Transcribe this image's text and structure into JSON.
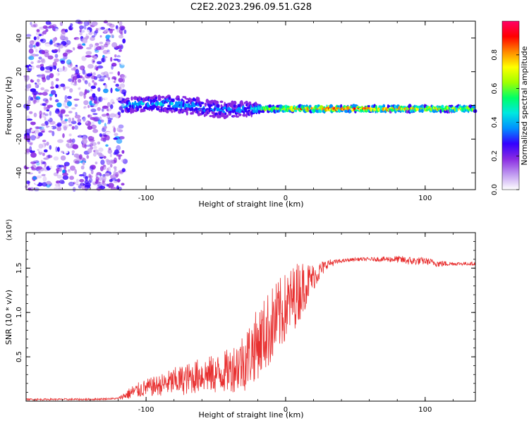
{
  "title": "C2E2.2023.296.09.51.G28",
  "chart_data": [
    {
      "type": "heatmap",
      "xlabel": "Height of straight line (km)",
      "ylabel": "Frequency (Hz)",
      "xlim": [
        -186,
        136
      ],
      "ylim": [
        -50,
        50
      ],
      "x_ticks": [
        -100,
        0,
        100
      ],
      "y_ticks": [
        -40,
        -20,
        0,
        20,
        40
      ],
      "colorbar": {
        "label": "Normalized spectral amplitude",
        "range": [
          0,
          1
        ],
        "ticks": [
          "0.0",
          "0.2",
          "0.4",
          "0.6",
          "0.8"
        ],
        "colors": [
          "#ffffff",
          "#c09af0",
          "#8a2be2",
          "#3300ff",
          "#0090ff",
          "#00e8e0",
          "#00ff66",
          "#a0ff00",
          "#ffff00",
          "#ff8800",
          "#ff0000",
          "#ff0066"
        ]
      },
      "noise_region": {
        "x_from": -186,
        "x_to": -115,
        "amplitude": 0.15
      },
      "signal": [
        {
          "x": -115,
          "freq": 0,
          "spread": 5,
          "amplitude": 0.4
        },
        {
          "x": -100,
          "freq": 1,
          "spread": 5,
          "amplitude": 0.4
        },
        {
          "x": -80,
          "freq": 1,
          "spread": 6,
          "amplitude": 0.4
        },
        {
          "x": -60,
          "freq": -1,
          "spread": 6,
          "amplitude": 0.35
        },
        {
          "x": -40,
          "freq": -3,
          "spread": 6,
          "amplitude": 0.35
        },
        {
          "x": -25,
          "freq": -2,
          "spread": 5,
          "amplitude": 0.35
        },
        {
          "x": -15,
          "freq": -2,
          "spread": 2,
          "amplitude": 0.65
        },
        {
          "x": 0,
          "freq": -2,
          "spread": 2,
          "amplitude": 0.75
        },
        {
          "x": 20,
          "freq": -2,
          "spread": 2,
          "amplitude": 0.9
        },
        {
          "x": 60,
          "freq": -2,
          "spread": 2,
          "amplitude": 0.9
        },
        {
          "x": 80,
          "freq": -2,
          "spread": 2,
          "amplitude": 0.8
        },
        {
          "x": 100,
          "freq": -2,
          "spread": 2,
          "amplitude": 0.75
        },
        {
          "x": 120,
          "freq": -2,
          "spread": 2,
          "amplitude": 0.75
        },
        {
          "x": 136,
          "freq": -2,
          "spread": 2,
          "amplitude": 0.7
        }
      ]
    },
    {
      "type": "line",
      "xlabel": "Height of straight line (km)",
      "ylabel": "SNR (10 * v/v)",
      "y_multiplier": "(x10⁴)",
      "xlim": [
        -186,
        136
      ],
      "ylim": [
        0,
        1.9
      ],
      "x_ticks": [
        -100,
        0,
        100
      ],
      "y_ticks": [
        "0.5",
        "1.0",
        "1.5"
      ],
      "line_color": "#e83030",
      "series": [
        {
          "x": [
            -186,
            -140,
            -120,
            -110,
            -100,
            -90,
            -80,
            -70,
            -60,
            -50,
            -40,
            -30,
            -20,
            -10,
            0,
            10,
            20,
            30,
            40,
            50,
            60,
            70,
            80,
            90,
            100,
            110,
            120,
            136
          ],
          "y": [
            0.02,
            0.02,
            0.03,
            0.1,
            0.15,
            0.18,
            0.22,
            0.25,
            0.3,
            0.3,
            0.35,
            0.45,
            0.65,
            0.85,
            1.05,
            1.25,
            1.4,
            1.55,
            1.58,
            1.6,
            1.6,
            1.6,
            1.6,
            1.58,
            1.58,
            1.55,
            1.55,
            1.55
          ],
          "spread": [
            0.01,
            0.01,
            0.01,
            0.08,
            0.1,
            0.12,
            0.16,
            0.18,
            0.2,
            0.22,
            0.25,
            0.35,
            0.4,
            0.45,
            0.4,
            0.35,
            0.15,
            0.05,
            0.02,
            0.02,
            0.02,
            0.03,
            0.04,
            0.05,
            0.04,
            0.04,
            0.02,
            0.02
          ]
        }
      ]
    }
  ]
}
